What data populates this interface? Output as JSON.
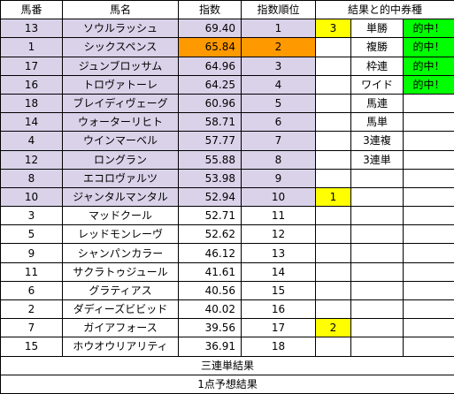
{
  "headers": {
    "umaban": "馬番",
    "bamei": "馬名",
    "shisu": "指数",
    "juni": "指数順位",
    "result": "結果と的中券種"
  },
  "rows": [
    {
      "umaban": "13",
      "bamei": "ソウルラッシュ",
      "shisu": "69.40",
      "juni": "1",
      "result": "3",
      "ticket": "単勝",
      "hit": "的中！"
    },
    {
      "umaban": "1",
      "bamei": "シックスペンス",
      "shisu": "65.84",
      "juni": "2",
      "result": "",
      "ticket": "複勝",
      "hit": "的中！"
    },
    {
      "umaban": "17",
      "bamei": "ジュンブロッサム",
      "shisu": "64.96",
      "juni": "3",
      "result": "",
      "ticket": "枠連",
      "hit": "的中！"
    },
    {
      "umaban": "16",
      "bamei": "トロヴァトーレ",
      "shisu": "64.25",
      "juni": "4",
      "result": "",
      "ticket": "ワイド",
      "hit": "的中！"
    },
    {
      "umaban": "18",
      "bamei": "ブレイディヴェーグ",
      "shisu": "60.96",
      "juni": "5",
      "result": "",
      "ticket": "馬連",
      "hit": ""
    },
    {
      "umaban": "14",
      "bamei": "ウォーターリヒト",
      "shisu": "58.71",
      "juni": "6",
      "result": "",
      "ticket": "馬単",
      "hit": ""
    },
    {
      "umaban": "4",
      "bamei": "ウインマーベル",
      "shisu": "57.77",
      "juni": "7",
      "result": "",
      "ticket": "3連複",
      "hit": ""
    },
    {
      "umaban": "12",
      "bamei": "ロングラン",
      "shisu": "55.88",
      "juni": "8",
      "result": "",
      "ticket": "3連単",
      "hit": ""
    },
    {
      "umaban": "8",
      "bamei": "エコロヴァルツ",
      "shisu": "53.98",
      "juni": "9",
      "result": "",
      "ticket": "",
      "hit": ""
    },
    {
      "umaban": "10",
      "bamei": "ジャンタルマンタル",
      "shisu": "52.94",
      "juni": "10",
      "result": "1",
      "ticket": "",
      "hit": ""
    },
    {
      "umaban": "3",
      "bamei": "マッドクール",
      "shisu": "52.71",
      "juni": "11",
      "result": "",
      "ticket": "",
      "hit": ""
    },
    {
      "umaban": "5",
      "bamei": "レッドモンレーヴ",
      "shisu": "52.62",
      "juni": "12",
      "result": "",
      "ticket": "",
      "hit": ""
    },
    {
      "umaban": "9",
      "bamei": "シャンパンカラー",
      "shisu": "46.12",
      "juni": "13",
      "result": "",
      "ticket": "",
      "hit": ""
    },
    {
      "umaban": "11",
      "bamei": "サクラトゥジュール",
      "shisu": "41.61",
      "juni": "14",
      "result": "",
      "ticket": "",
      "hit": ""
    },
    {
      "umaban": "6",
      "bamei": "グラティアス",
      "shisu": "40.56",
      "juni": "15",
      "result": "",
      "ticket": "",
      "hit": ""
    },
    {
      "umaban": "2",
      "bamei": "ダディーズビビッド",
      "shisu": "40.02",
      "juni": "16",
      "result": "",
      "ticket": "",
      "hit": ""
    },
    {
      "umaban": "7",
      "bamei": "ガイアフォース",
      "shisu": "39.56",
      "juni": "17",
      "result": "2",
      "ticket": "",
      "hit": ""
    },
    {
      "umaban": "15",
      "bamei": "ホウオウリアリティ",
      "shisu": "36.91",
      "juni": "18",
      "result": "",
      "ticket": "",
      "hit": ""
    }
  ],
  "footer": {
    "sanrentan_result": "三連単結果",
    "one_point": "1点予想結果"
  },
  "colors": {
    "top_rank_fill": "#d9d2e9",
    "highlight_fill": "#ff9900",
    "finish_fill": "#ffff00",
    "hit_fill": "#00ff00"
  }
}
